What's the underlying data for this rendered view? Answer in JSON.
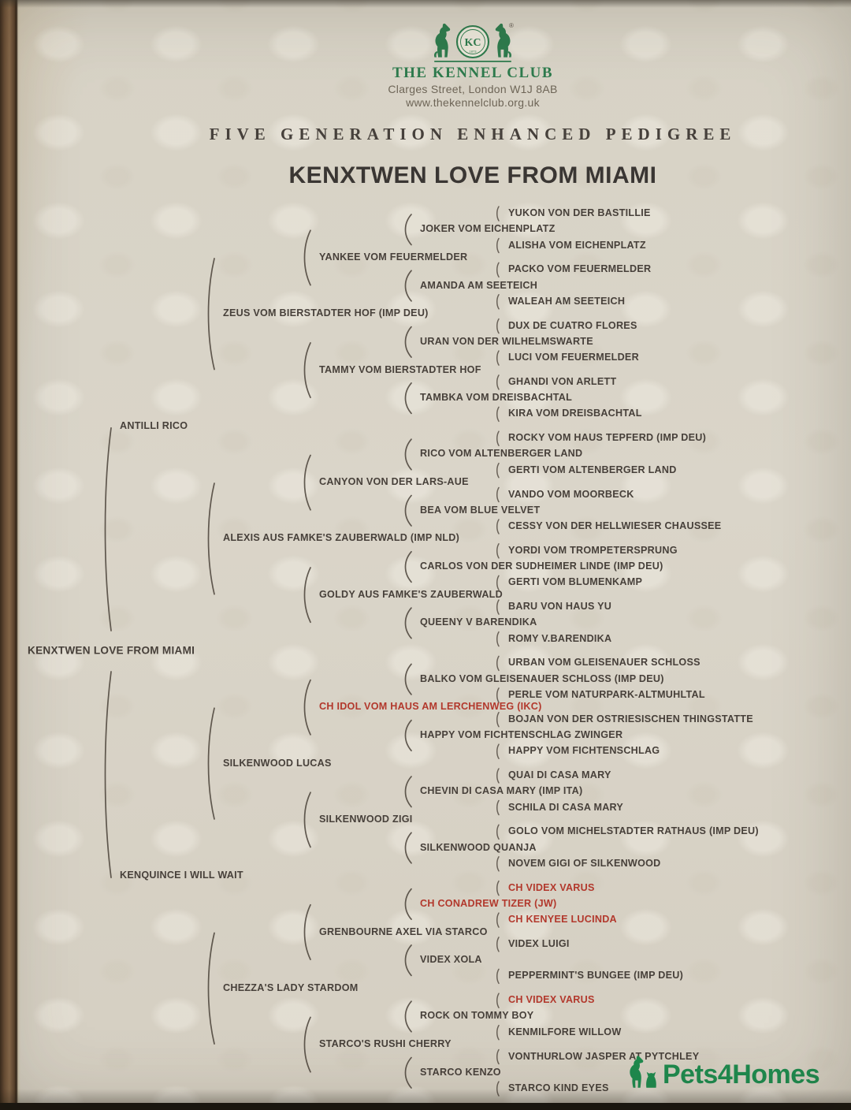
{
  "header": {
    "brand": "THE KENNEL CLUB",
    "address_line1": "Clarges Street, London W1J 8AB",
    "address_line2": "www.thekennelclub.org.uk",
    "emblem_monogram": "KC",
    "emblem_year": "1873",
    "registered_mark": "®"
  },
  "document": {
    "title": "FIVE GENERATION ENHANCED PEDIGREE",
    "subject": "KENXTWEN LOVE FROM MIAMI"
  },
  "watermark": {
    "label": "Pets4Homes"
  },
  "icons": {
    "logo": "kennel-club-two-dogs-emblem",
    "watermark": "pets4homes-dog-cat"
  },
  "colors": {
    "brand_green": "#2e7b4d",
    "champion_red": "#b2382c",
    "text": "#47403a",
    "paper": "#d8d3c6",
    "watermark_green": "#1e8a4e"
  },
  "pedigree": {
    "root": {
      "name": "KENXTWEN LOVE FROM MIAMI",
      "sire": {
        "name": "ANTILLI RICO",
        "sire": {
          "name": "ZEUS VOM BIERSTADTER HOF (IMP DEU)",
          "sire": {
            "name": "YANKEE VOM FEUERMELDER",
            "sire": {
              "name": "JOKER VOM EICHENPLATZ",
              "sire": {
                "name": "YUKON VON DER BASTILLIE"
              },
              "dam": {
                "name": "ALISHA VOM EICHENPLATZ"
              }
            },
            "dam": {
              "name": "AMANDA AM SEETEICH",
              "sire": {
                "name": "PACKO VOM FEUERMELDER"
              },
              "dam": {
                "name": "WALEAH AM SEETEICH"
              }
            }
          },
          "dam": {
            "name": "TAMMY VOM BIERSTADTER HOF",
            "sire": {
              "name": "URAN VON DER WILHELMSWARTE",
              "sire": {
                "name": "DUX DE CUATRO FLORES"
              },
              "dam": {
                "name": "LUCI VOM FEUERMELDER"
              }
            },
            "dam": {
              "name": "TAMBKA VOM DREISBACHTAL",
              "sire": {
                "name": "GHANDI VON ARLETT"
              },
              "dam": {
                "name": "KIRA VOM DREISBACHTAL"
              }
            }
          }
        },
        "dam": {
          "name": "ALEXIS AUS FAMKE'S ZAUBERWALD (IMP NLD)",
          "sire": {
            "name": "CANYON VON DER LARS-AUE",
            "sire": {
              "name": "RICO VOM ALTENBERGER LAND",
              "sire": {
                "name": "ROCKY VOM HAUS TEPFERD (IMP DEU)"
              },
              "dam": {
                "name": "GERTI VOM ALTENBERGER LAND"
              }
            },
            "dam": {
              "name": "BEA VOM BLUE VELVET",
              "sire": {
                "name": "VANDO VOM MOORBECK"
              },
              "dam": {
                "name": "CESSY VON DER HELLWIESER CHAUSSEE"
              }
            }
          },
          "dam": {
            "name": "GOLDY AUS FAMKE'S ZAUBERWALD",
            "sire": {
              "name": "CARLOS VON DER SUDHEIMER LINDE (IMP DEU)",
              "sire": {
                "name": "YORDI VOM TROMPETERSPRUNG"
              },
              "dam": {
                "name": "GERTI VOM BLUMENKAMP"
              }
            },
            "dam": {
              "name": "QUEENY V BARENDIKA",
              "sire": {
                "name": "BARU VON HAUS YU"
              },
              "dam": {
                "name": "ROMY V.BARENDIKA"
              }
            }
          }
        }
      },
      "dam": {
        "name": "KENQUINCE I WILL WAIT",
        "sire": {
          "name": "SILKENWOOD LUCAS",
          "sire": {
            "name": "CH IDOL VOM HAUS AM LERCHENWEG (IKC)",
            "champion": true,
            "sire": {
              "name": "BALKO VOM GLEISENAUER SCHLOSS (IMP DEU)",
              "sire": {
                "name": "URBAN VOM GLEISENAUER SCHLOSS"
              },
              "dam": {
                "name": "PERLE VOM NATURPARK-ALTMUHLTAL"
              }
            },
            "dam": {
              "name": "HAPPY VOM FICHTENSCHLAG ZWINGER",
              "sire": {
                "name": "BOJAN VON DER OSTRIESISCHEN THINGSTATTE"
              },
              "dam": {
                "name": "HAPPY VOM FICHTENSCHLAG"
              }
            }
          },
          "dam": {
            "name": "SILKENWOOD ZIGI",
            "sire": {
              "name": "CHEVIN DI CASA MARY (IMP ITA)",
              "sire": {
                "name": "QUAI DI CASA MARY"
              },
              "dam": {
                "name": "SCHILA DI CASA MARY"
              }
            },
            "dam": {
              "name": "SILKENWOOD QUANJA",
              "sire": {
                "name": "GOLO VOM MICHELSTADTER RATHAUS (IMP DEU)"
              },
              "dam": {
                "name": "NOVEM GIGI OF SILKENWOOD"
              }
            }
          }
        },
        "dam": {
          "name": "CHEZZA'S LADY STARDOM",
          "sire": {
            "name": "GRENBOURNE AXEL VIA STARCO",
            "sire": {
              "name": "CH CONADREW TIZER (JW)",
              "champion": true,
              "sire": {
                "name": "CH VIDEX VARUS",
                "champion": true
              },
              "dam": {
                "name": "CH KENYEE LUCINDA",
                "champion": true
              }
            },
            "dam": {
              "name": "VIDEX XOLA",
              "sire": {
                "name": "VIDEX LUIGI"
              },
              "dam": {
                "name": "PEPPERMINT'S BUNGEE (IMP DEU)"
              }
            }
          },
          "dam": {
            "name": "STARCO'S RUSHI CHERRY",
            "sire": {
              "name": "ROCK ON TOMMY BOY",
              "sire": {
                "name": "CH VIDEX VARUS",
                "champion": true
              },
              "dam": {
                "name": "KENMILFORE WILLOW"
              }
            },
            "dam": {
              "name": "STARCO KENZO",
              "sire": {
                "name": "VONTHURLOW JASPER AT PYTCHLEY"
              },
              "dam": {
                "name": "STARCO KIND EYES"
              }
            }
          }
        }
      }
    }
  }
}
